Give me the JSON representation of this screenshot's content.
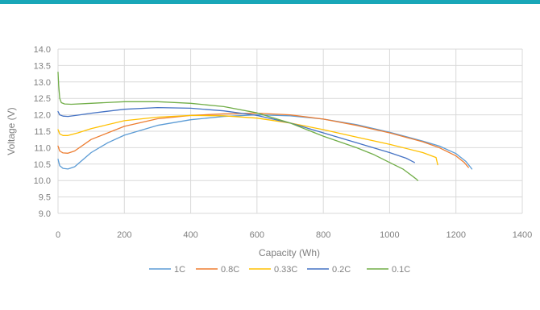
{
  "chart_data": {
    "type": "line",
    "title": "",
    "xlabel": "Capacity (Wh)",
    "ylabel": "Voltage (V)",
    "xlim": [
      0,
      1400
    ],
    "ylim": [
      9.0,
      14.0
    ],
    "x_ticks": [
      "0",
      "200",
      "400",
      "600",
      "800",
      "1000",
      "1200",
      "1400"
    ],
    "y_ticks": [
      "9.0",
      "9.5",
      "10.0",
      "10.5",
      "11.0",
      "11.5",
      "12.0",
      "12.5",
      "13.0",
      "13.5",
      "14.0"
    ],
    "grid": true,
    "legend_position": "bottom",
    "series": [
      {
        "name": "1C",
        "color": "#5b9bd5",
        "points": [
          [
            0,
            10.65
          ],
          [
            5,
            10.45
          ],
          [
            15,
            10.37
          ],
          [
            30,
            10.35
          ],
          [
            50,
            10.42
          ],
          [
            100,
            10.85
          ],
          [
            150,
            11.15
          ],
          [
            200,
            11.38
          ],
          [
            300,
            11.68
          ],
          [
            400,
            11.85
          ],
          [
            500,
            11.95
          ],
          [
            600,
            12.0
          ],
          [
            700,
            11.97
          ],
          [
            800,
            11.87
          ],
          [
            900,
            11.7
          ],
          [
            1000,
            11.47
          ],
          [
            1100,
            11.2
          ],
          [
            1150,
            11.05
          ],
          [
            1200,
            10.82
          ],
          [
            1230,
            10.58
          ],
          [
            1248,
            10.35
          ]
        ]
      },
      {
        "name": "0.8C",
        "color": "#ed7d31",
        "points": [
          [
            0,
            11.05
          ],
          [
            5,
            10.9
          ],
          [
            15,
            10.84
          ],
          [
            30,
            10.83
          ],
          [
            50,
            10.9
          ],
          [
            100,
            11.25
          ],
          [
            200,
            11.65
          ],
          [
            300,
            11.88
          ],
          [
            400,
            11.98
          ],
          [
            500,
            12.03
          ],
          [
            600,
            12.05
          ],
          [
            700,
            12.0
          ],
          [
            800,
            11.87
          ],
          [
            900,
            11.68
          ],
          [
            1000,
            11.45
          ],
          [
            1100,
            11.18
          ],
          [
            1150,
            11.0
          ],
          [
            1200,
            10.75
          ],
          [
            1225,
            10.55
          ],
          [
            1238,
            10.4
          ]
        ]
      },
      {
        "name": "0.33C",
        "color": "#ffc000",
        "points": [
          [
            0,
            11.55
          ],
          [
            5,
            11.42
          ],
          [
            15,
            11.37
          ],
          [
            30,
            11.37
          ],
          [
            60,
            11.45
          ],
          [
            100,
            11.58
          ],
          [
            200,
            11.82
          ],
          [
            300,
            11.93
          ],
          [
            400,
            11.98
          ],
          [
            500,
            11.97
          ],
          [
            600,
            11.9
          ],
          [
            700,
            11.75
          ],
          [
            800,
            11.55
          ],
          [
            900,
            11.32
          ],
          [
            1000,
            11.1
          ],
          [
            1100,
            10.85
          ],
          [
            1140,
            10.7
          ],
          [
            1145,
            10.48
          ]
        ]
      },
      {
        "name": "0.2C",
        "color": "#4472c4",
        "points": [
          [
            0,
            12.1
          ],
          [
            5,
            12.0
          ],
          [
            15,
            11.96
          ],
          [
            30,
            11.95
          ],
          [
            60,
            11.99
          ],
          [
            100,
            12.05
          ],
          [
            200,
            12.17
          ],
          [
            300,
            12.22
          ],
          [
            400,
            12.2
          ],
          [
            500,
            12.12
          ],
          [
            600,
            11.98
          ],
          [
            700,
            11.75
          ],
          [
            800,
            11.45
          ],
          [
            900,
            11.15
          ],
          [
            1000,
            10.85
          ],
          [
            1050,
            10.68
          ],
          [
            1075,
            10.55
          ]
        ]
      },
      {
        "name": "0.1C",
        "color": "#70ad47",
        "points": [
          [
            0,
            13.3
          ],
          [
            2,
            12.9
          ],
          [
            5,
            12.5
          ],
          [
            10,
            12.37
          ],
          [
            20,
            12.33
          ],
          [
            40,
            12.32
          ],
          [
            100,
            12.35
          ],
          [
            200,
            12.4
          ],
          [
            300,
            12.4
          ],
          [
            400,
            12.35
          ],
          [
            500,
            12.25
          ],
          [
            600,
            12.06
          ],
          [
            700,
            11.75
          ],
          [
            800,
            11.35
          ],
          [
            900,
            11.0
          ],
          [
            950,
            10.8
          ],
          [
            1000,
            10.55
          ],
          [
            1040,
            10.35
          ],
          [
            1080,
            10.05
          ],
          [
            1085,
            10.0
          ]
        ]
      }
    ]
  }
}
